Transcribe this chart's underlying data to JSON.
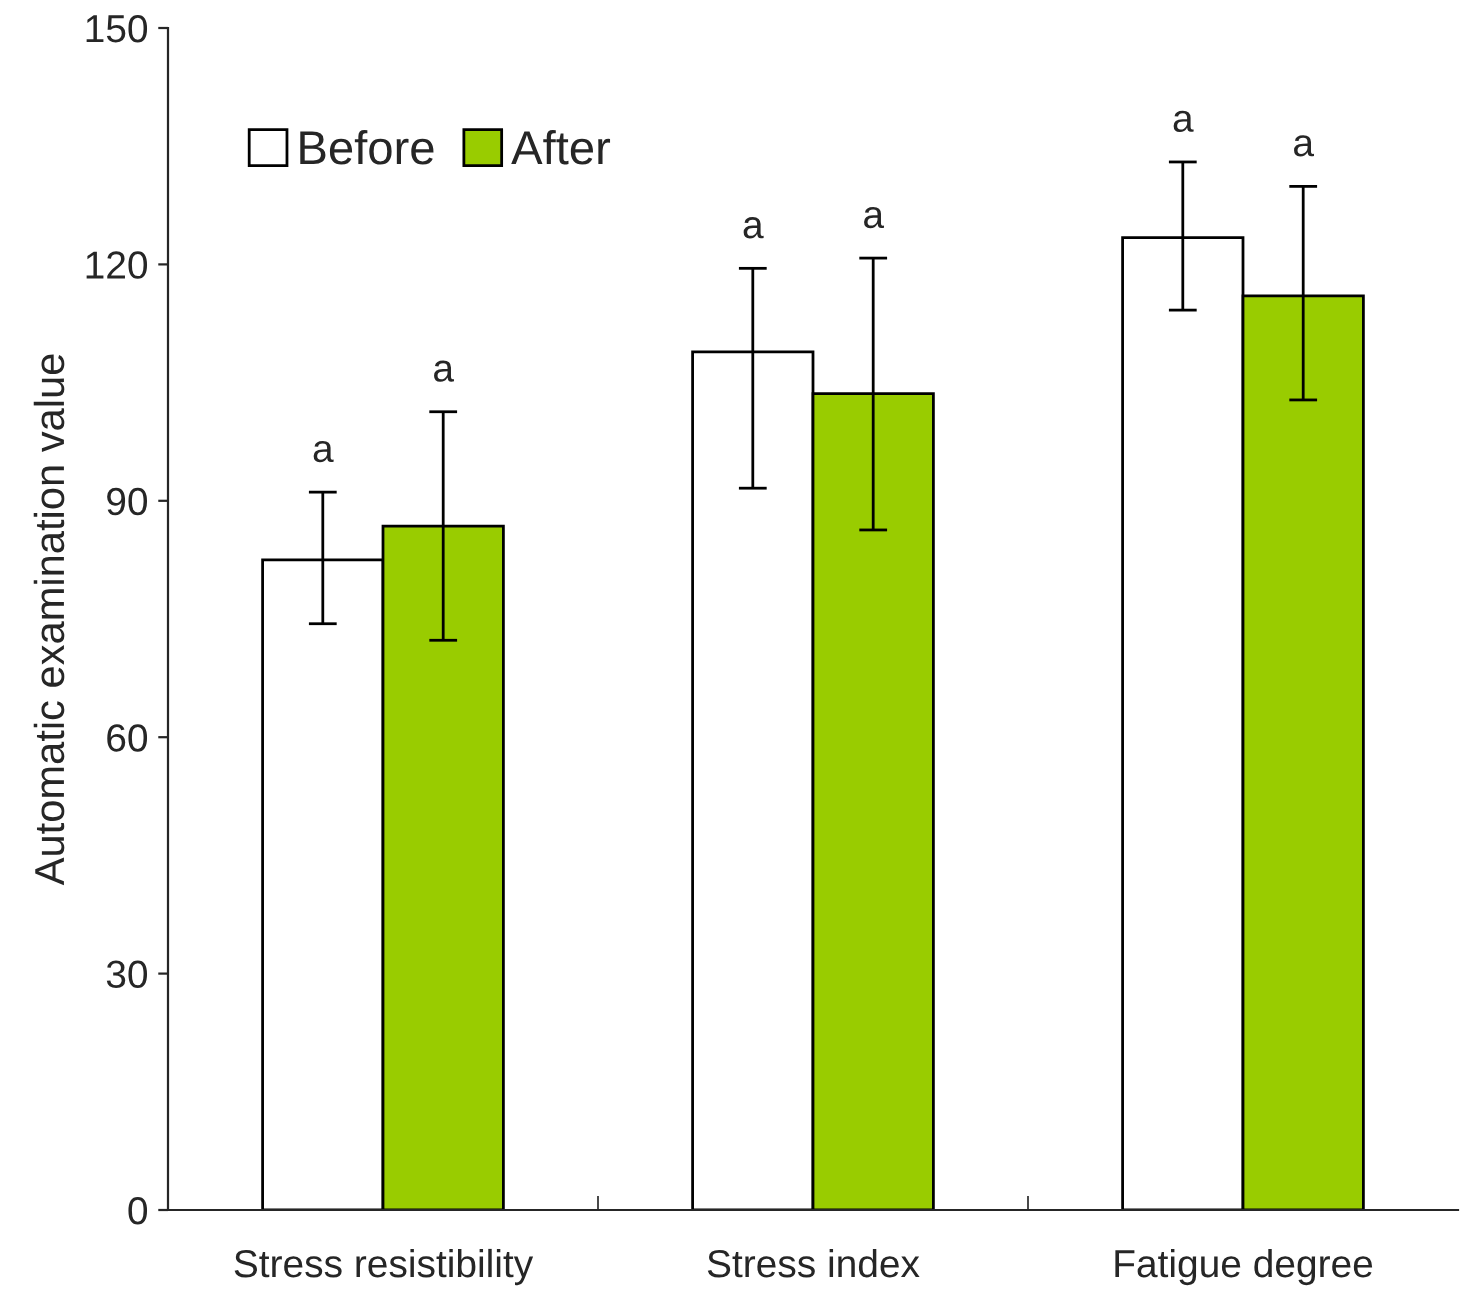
{
  "chart_data": {
    "type": "bar",
    "ylabel": "Automatic examination value",
    "categories": [
      "Stress resistibility",
      "Stress index",
      "Fatigue degree"
    ],
    "series": [
      {
        "name": "Before",
        "color": "#ffffff",
        "values": [
          82.5,
          108.9,
          123.4
        ],
        "errors": [
          [
            74.4,
            91.1
          ],
          [
            91.6,
            119.5
          ],
          [
            114.2,
            133
          ]
        ]
      },
      {
        "name": "After",
        "color": "#99cc00",
        "values": [
          86.8,
          103.6,
          116
        ],
        "errors": [
          [
            72.3,
            101.3
          ],
          [
            86.3,
            120.8
          ],
          [
            102.8,
            129.9
          ]
        ]
      }
    ],
    "ylim": [
      0,
      150
    ],
    "yticks": [
      0,
      30,
      60,
      90,
      120,
      150
    ],
    "grid": false,
    "legend": "top left",
    "annotations": [
      "a",
      "a",
      "a",
      "a",
      "a",
      "a"
    ]
  }
}
